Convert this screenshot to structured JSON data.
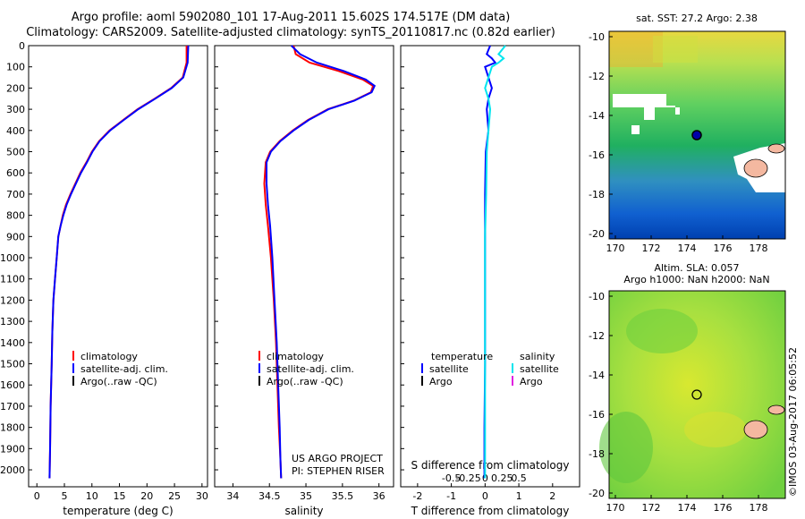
{
  "header": {
    "line1": "Argo profile: aoml 5902080_101 17-Aug-2011 15.602S 174.517E (DM data)",
    "line2": "Climatology: CARS2009. Satellite-adjusted climatology: synTS_20110817.nc (0.82d earlier)"
  },
  "colors": {
    "climatology": "#ff0000",
    "satellite": "#0000ff",
    "argo": "#000000",
    "sal_satellite": "#00e5ee",
    "sal_argo": "#e020e0"
  },
  "chart_data": [
    {
      "type": "line",
      "id": "temperature",
      "xlabel": "temperature (deg C)",
      "ylabel": "",
      "xlim": [
        -1.5,
        31
      ],
      "ylim": [
        2080,
        0
      ],
      "xticks": [
        0,
        5,
        10,
        15,
        20,
        25,
        30
      ],
      "xtick_labels": [
        "0",
        "5",
        "10",
        "15",
        "20",
        "25",
        "30"
      ],
      "yticks": [
        0,
        100,
        200,
        300,
        400,
        500,
        600,
        700,
        800,
        900,
        1000,
        1100,
        1200,
        1300,
        1400,
        1500,
        1600,
        1700,
        1800,
        1900,
        2000
      ],
      "ytick_labels": [
        "0",
        "100",
        "200",
        "300",
        "400",
        "500",
        "600",
        "700",
        "800",
        "900",
        "1000",
        "1100",
        "1200",
        "1300",
        "1400",
        "1500",
        "1600",
        "1700",
        "1800",
        "1900",
        "2000"
      ],
      "legend": [
        "climatology",
        "satellite-adj. clim.",
        "Argo(..raw -QC)"
      ],
      "series": [
        {
          "name": "climatology",
          "color": "red",
          "x": [
            27.2,
            27.2,
            26.5,
            24.4,
            21.4,
            18.3,
            15.7,
            13.2,
            11.3,
            10.0,
            9.0,
            7.9,
            7.0,
            6.1,
            5.3,
            4.7,
            4.3,
            3.9,
            3.6,
            3.3,
            3.0,
            2.8,
            2.7,
            2.5,
            2.4,
            2.3
          ],
          "y": [
            0,
            80,
            150,
            200,
            250,
            300,
            350,
            400,
            450,
            500,
            550,
            600,
            650,
            700,
            750,
            800,
            850,
            900,
            1000,
            1100,
            1200,
            1350,
            1500,
            1700,
            1900,
            2040
          ]
        },
        {
          "name": "satellite-adj. clim.",
          "color": "blue",
          "x": [
            27.5,
            27.4,
            26.6,
            24.5,
            21.5,
            18.4,
            15.8,
            13.3,
            11.4,
            10.1,
            9.1,
            8.0,
            7.1,
            6.2,
            5.4,
            4.8,
            4.3,
            3.9,
            3.6,
            3.3,
            3.0,
            2.8,
            2.7,
            2.5,
            2.4,
            2.3
          ],
          "y": [
            0,
            80,
            150,
            200,
            250,
            300,
            350,
            400,
            450,
            500,
            550,
            600,
            650,
            700,
            750,
            800,
            850,
            900,
            1000,
            1100,
            1200,
            1350,
            1500,
            1700,
            1900,
            2040
          ]
        }
      ]
    },
    {
      "type": "line",
      "id": "salinity",
      "xlabel": "salinity",
      "xlim": [
        33.75,
        36.2
      ],
      "ylim": [
        2080,
        0
      ],
      "xticks": [
        34,
        34.5,
        35,
        35.5,
        36
      ],
      "xtick_labels": [
        "34",
        "34.5",
        "35",
        "35.5",
        "36"
      ],
      "legend": [
        "climatology",
        "satellite-adj. clim.",
        "Argo(..raw -QC)"
      ],
      "annotation": [
        "US ARGO PROJECT",
        "PI: STEPHEN RISER"
      ],
      "series": [
        {
          "name": "climatology",
          "color": "red",
          "x": [
            34.83,
            34.86,
            35.05,
            35.45,
            35.78,
            35.92,
            35.89,
            35.65,
            35.3,
            35.03,
            34.82,
            34.64,
            34.51,
            34.45,
            34.43,
            34.45,
            34.48,
            34.52,
            34.56,
            34.59,
            34.61,
            34.63,
            34.65,
            34.66
          ],
          "y": [
            0,
            40,
            80,
            120,
            160,
            190,
            220,
            260,
            300,
            350,
            400,
            450,
            500,
            550,
            650,
            750,
            850,
            1000,
            1200,
            1400,
            1600,
            1800,
            1950,
            2040
          ]
        },
        {
          "name": "satellite-adj. clim.",
          "color": "blue",
          "x": [
            34.8,
            34.92,
            35.15,
            35.52,
            35.82,
            35.94,
            35.9,
            35.66,
            35.31,
            35.04,
            34.83,
            34.65,
            34.52,
            34.46,
            34.46,
            34.48,
            34.51,
            34.54,
            34.57,
            34.6,
            34.62,
            34.64,
            34.65,
            34.66
          ],
          "y": [
            0,
            40,
            80,
            120,
            160,
            190,
            220,
            260,
            300,
            350,
            400,
            450,
            500,
            550,
            650,
            750,
            850,
            1000,
            1200,
            1400,
            1600,
            1800,
            1950,
            2040
          ]
        }
      ]
    },
    {
      "type": "line",
      "id": "difference",
      "xlabel": "T difference from climatology",
      "xlabel2": "S difference from climatology",
      "xlim": [
        -2.5,
        2.8
      ],
      "ylim": [
        2080,
        0
      ],
      "xticks": [
        -2,
        -1,
        0,
        1,
        2
      ],
      "xtick_labels": [
        "-2",
        "-1",
        "0",
        "1",
        "2"
      ],
      "xticks_top": [
        -1.0,
        -0.5,
        0,
        0.5,
        1.0
      ],
      "xtick_labels_top": [
        "-0.5",
        "-0.25",
        "0",
        "0.25",
        "0.5"
      ],
      "legend": {
        "temperature": "temperature",
        "salinity": "salinity",
        "entries": [
          "satellite",
          "Argo",
          "satellite",
          "Argo"
        ]
      },
      "series": [
        {
          "name": "temperature satellite",
          "color": "blue",
          "x": [
            0.15,
            0.1,
            0.05,
            0.2,
            0.3,
            0.0,
            0.1,
            0.2,
            0.1,
            0.05,
            0.1,
            0.02,
            0.0,
            0.0,
            0.0,
            0.0,
            -0.02,
            -0.02
          ],
          "y": [
            0,
            20,
            40,
            60,
            80,
            100,
            150,
            200,
            250,
            300,
            400,
            500,
            700,
            900,
            1200,
            1500,
            1800,
            2040
          ]
        },
        {
          "name": "salinity satellite",
          "color": "cyan",
          "x": [
            0.6,
            0.5,
            0.4,
            0.55,
            0.4,
            0.2,
            0.1,
            0.0,
            0.1,
            0.15,
            0.1,
            0.05,
            0.03,
            0.0,
            0.0,
            0.0,
            0.0,
            0.0
          ],
          "y": [
            0,
            20,
            40,
            60,
            80,
            100,
            150,
            200,
            250,
            300,
            400,
            500,
            700,
            900,
            1200,
            1500,
            1800,
            2040
          ]
        }
      ]
    }
  ],
  "maps": {
    "top": {
      "title": "sat. SST: 27.2  Argo: 2.38",
      "yticks": [
        "-10",
        "-12",
        "-14",
        "-16",
        "-18",
        "-20"
      ],
      "xticks": [
        "170",
        "172",
        "174",
        "176",
        "178"
      ]
    },
    "bottom": {
      "title1": "Altim. SLA: 0.057",
      "title2": "Argo h1000: NaN h2000: NaN",
      "yticks": [
        "-10",
        "-12",
        "-14",
        "-16",
        "-18",
        "-20"
      ],
      "xticks": [
        "170",
        "172",
        "174",
        "176",
        "178"
      ]
    }
  },
  "footer": {
    "stamp": "©IMOS 03-Aug-2017 06:05:52"
  }
}
